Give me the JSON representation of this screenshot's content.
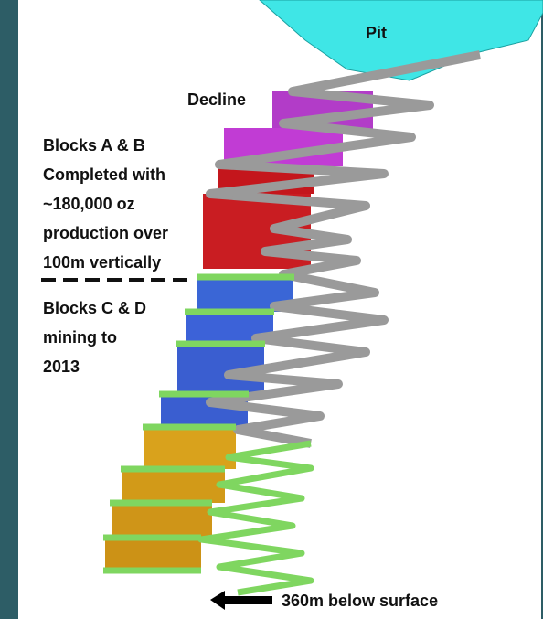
{
  "labels": {
    "pit": "Pit",
    "decline": "Decline",
    "depth": "360m below surface"
  },
  "notes": [
    {
      "lines": [
        "Blocks A & B",
        "Completed with",
        "~180,000 oz",
        "production over",
        "100m vertically"
      ]
    },
    {
      "lines": [
        "Blocks C & D",
        "mining to",
        "2013"
      ]
    }
  ]
}
